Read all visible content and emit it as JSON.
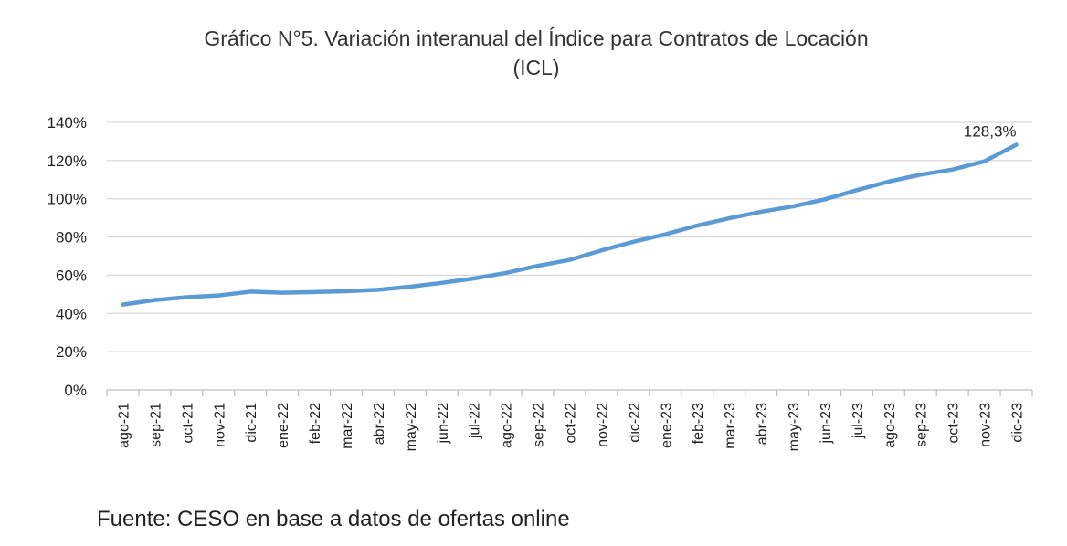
{
  "chart_data": {
    "type": "line",
    "title": "Gráfico N°5. Variación interanual del Índice para Contratos de Locación",
    "title_line2": "(ICL)",
    "categories": [
      "ago-21",
      "sep-21",
      "oct-21",
      "nov-21",
      "dic-21",
      "ene-22",
      "feb-22",
      "mar-22",
      "abr-22",
      "may-22",
      "jun-22",
      "jul-22",
      "ago-22",
      "sep-22",
      "oct-22",
      "nov-22",
      "dic-22",
      "ene-23",
      "feb-23",
      "mar-23",
      "abr-23",
      "may-23",
      "jun-23",
      "jul-23",
      "ago-23",
      "sep-23",
      "oct-23",
      "nov-23",
      "dic-23"
    ],
    "series": [
      {
        "values": [
          44.6,
          47.0,
          48.5,
          49.4,
          51.4,
          50.8,
          51.2,
          51.6,
          52.4,
          54.0,
          56.0,
          58.3,
          61.2,
          64.9,
          68.0,
          73.0,
          77.5,
          81.4,
          86.0,
          89.8,
          93.2,
          96.0,
          99.7,
          104.5,
          109.0,
          112.6,
          115.3,
          119.6,
          128.3
        ]
      }
    ],
    "yticks": [
      "0%",
      "20%",
      "40%",
      "60%",
      "80%",
      "100%",
      "120%",
      "140%"
    ],
    "ylim": [
      0,
      140
    ],
    "grid": true,
    "color": "#5b9bd5",
    "data_labels": [
      {
        "index": 28,
        "text": "128,3%"
      }
    ]
  },
  "source": "Fuente: CESO en base a datos de ofertas online"
}
